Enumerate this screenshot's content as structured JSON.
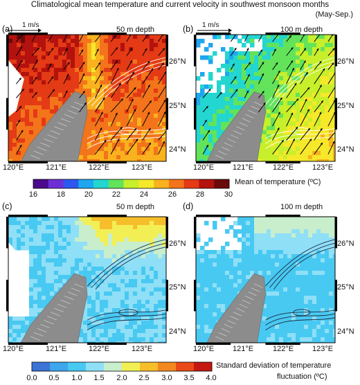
{
  "title": "Climatological mean temperature and current velocity in southwest monsoon months",
  "subtitle": "(May-Sep.)",
  "panels": [
    {
      "label": "(a)",
      "depth": "50 m depth",
      "velocity_scale": "1 m/s"
    },
    {
      "label": "(b)",
      "depth": "100 m depth",
      "velocity_scale": "1 m/s"
    },
    {
      "label": "(c)",
      "depth": "50 m depth"
    },
    {
      "label": "(d)",
      "depth": "100 m depth"
    }
  ],
  "lat_labels": [
    "26°N",
    "25°N",
    "24°N"
  ],
  "lon_labels": [
    "120°E",
    "121°E",
    "122°E",
    "123°E"
  ],
  "colorbar_mean": {
    "title": "Mean of temperature (ºC)",
    "ticks": [
      "16",
      "18",
      "20",
      "22",
      "24",
      "26",
      "28",
      "30"
    ],
    "colors": [
      "#4b0a8c",
      "#6d2fd6",
      "#2d58f0",
      "#1fa6f0",
      "#23d6cf",
      "#62e35a",
      "#c7ef2b",
      "#f6e82a",
      "#f9b21e",
      "#f3741a",
      "#e43a15",
      "#b3120e",
      "#6b0a0a"
    ]
  },
  "colorbar_std": {
    "title": "Standard deviation of temperature",
    "title2": "fluctuation (ºC)",
    "ticks": [
      "0.0",
      "0.5",
      "1.0",
      "1.5",
      "2.0",
      "2.5",
      "3.0",
      "3.5",
      "4.0"
    ],
    "colors": [
      "#3c73d6",
      "#3da6ec",
      "#48c9f2",
      "#8fdff7",
      "#c8eecc",
      "#f2ef55",
      "#f6be2a",
      "#f38820",
      "#ea4a17",
      "#c51812"
    ]
  }
}
